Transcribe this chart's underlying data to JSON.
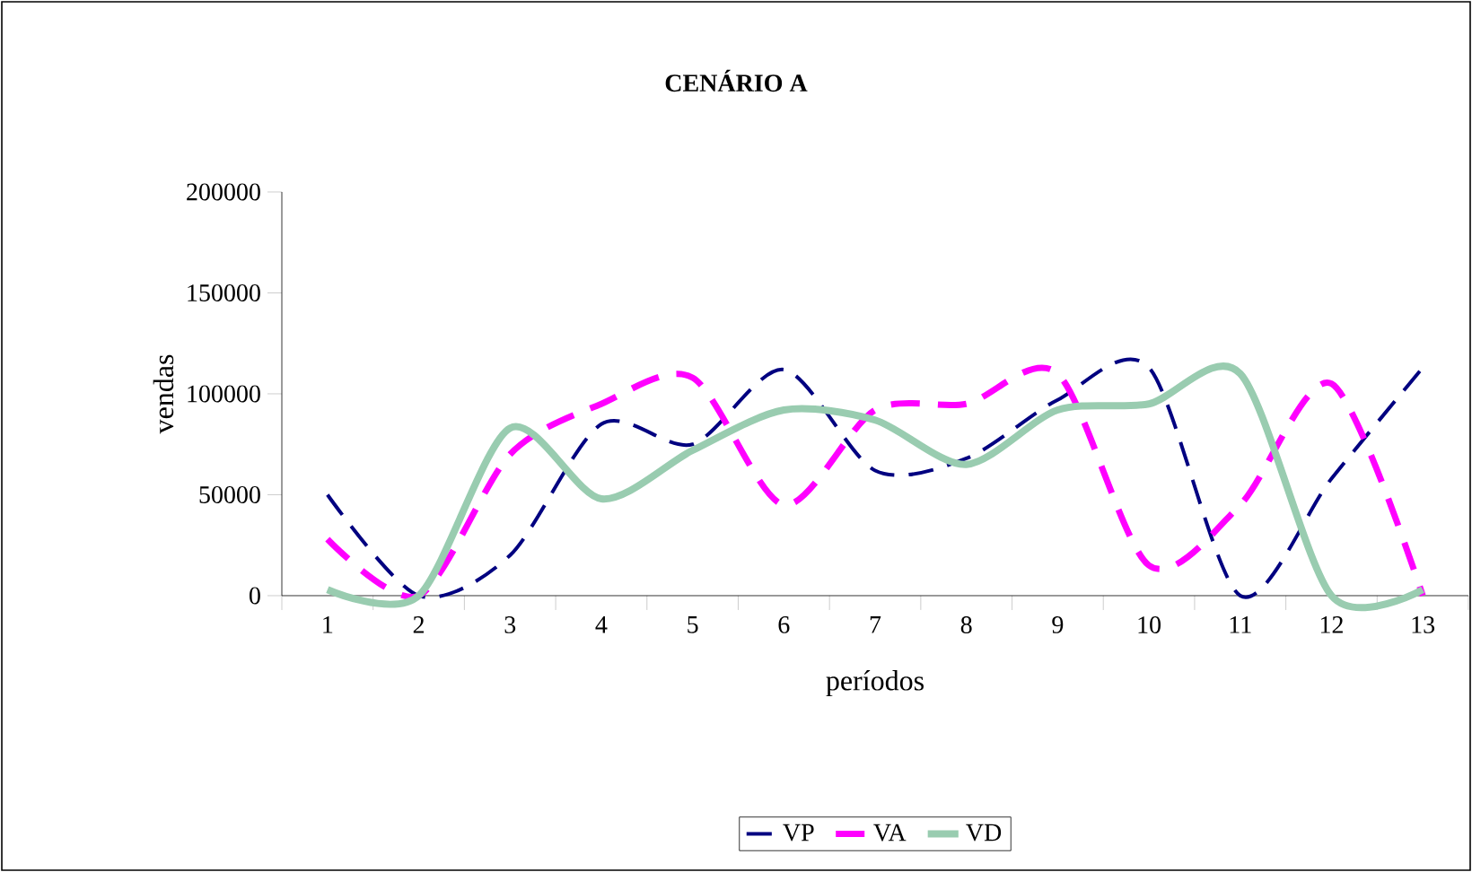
{
  "chart_data": {
    "type": "line",
    "title": "CENÁRIO A",
    "xlabel": "períodos",
    "ylabel": "vendas",
    "categories": [
      "1",
      "2",
      "3",
      "4",
      "5",
      "6",
      "7",
      "8",
      "9",
      "10",
      "11",
      "12",
      "13"
    ],
    "series": [
      {
        "name": "VP",
        "color": "#000080",
        "line_style": "dashed",
        "values": [
          50000,
          0,
          20000,
          85000,
          75000,
          112000,
          62000,
          68000,
          97000,
          113000,
          0,
          58000,
          113000
        ]
      },
      {
        "name": "VA",
        "color": "#ff00ff",
        "line_style": "dashed",
        "values": [
          28000,
          0,
          70000,
          95000,
          108000,
          45000,
          92000,
          95000,
          110000,
          15000,
          45000,
          105000,
          0
        ]
      },
      {
        "name": "VD",
        "color": "#99ccb0",
        "line_style": "solid",
        "values": [
          3000,
          0,
          83000,
          48000,
          72000,
          92000,
          87000,
          65000,
          92000,
          95000,
          110000,
          0,
          3000
        ]
      }
    ],
    "ylim": [
      0,
      200000
    ],
    "yticks": [
      0,
      50000,
      100000,
      150000,
      200000
    ],
    "grid": false,
    "legend": "bottom",
    "marker": "none"
  }
}
